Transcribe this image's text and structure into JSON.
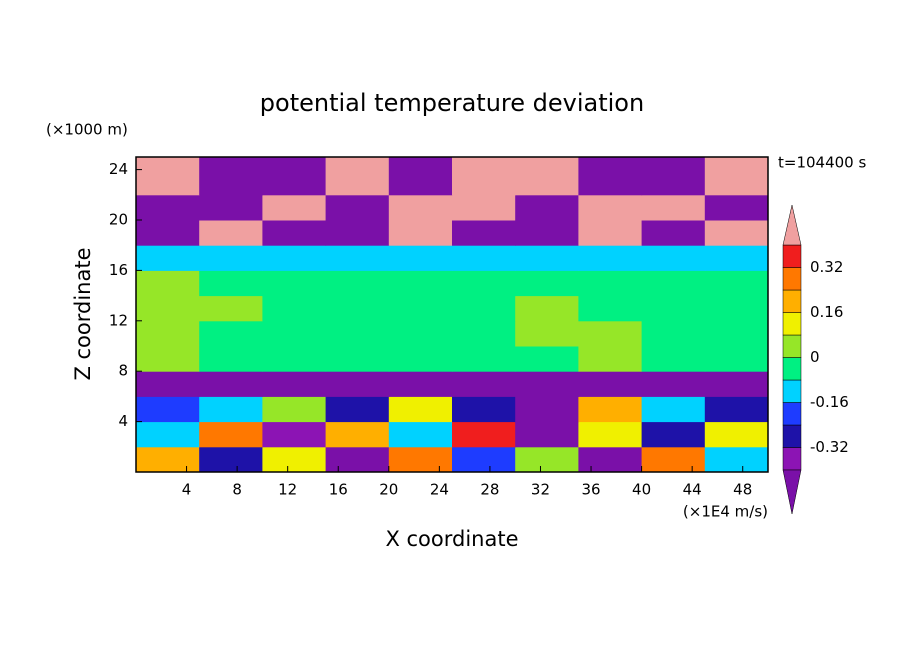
{
  "chart_data": {
    "type": "contour",
    "title": "potential temperature deviation",
    "xlabel": "X coordinate",
    "ylabel": "Z coordinate",
    "x_unit": "(×1E4 m/s)",
    "y_unit": "(×1000 m)",
    "time_label": "t=104400 s",
    "xlim": [
      0,
      50
    ],
    "ylim": [
      0,
      25
    ],
    "xticks": [
      4,
      8,
      12,
      16,
      20,
      24,
      28,
      32,
      36,
      40,
      44,
      48
    ],
    "yticks": [
      4,
      8,
      12,
      16,
      20,
      24
    ],
    "x": [
      2.5,
      7.5,
      12.5,
      17.5,
      22.5,
      27.5,
      32.5,
      37.5,
      42.5,
      47.5
    ],
    "z": [
      1,
      3,
      5,
      7,
      9,
      11,
      13,
      15,
      17,
      19,
      21,
      23
    ],
    "values": [
      [
        0.2,
        -0.3,
        0.12,
        -0.45,
        0.3,
        -0.2,
        0.05,
        -0.45,
        0.25,
        -0.1
      ],
      [
        -0.1,
        0.25,
        -0.35,
        0.18,
        -0.15,
        0.35,
        -0.42,
        0.1,
        -0.25,
        0.15
      ],
      [
        -0.2,
        -0.1,
        0.05,
        -0.3,
        0.1,
        -0.25,
        -0.45,
        0.2,
        -0.15,
        -0.3
      ],
      [
        -0.45,
        -0.45,
        -0.42,
        -0.45,
        -0.45,
        -0.44,
        -0.45,
        -0.45,
        -0.42,
        -0.45
      ],
      [
        0.03,
        -0.04,
        -0.03,
        -0.05,
        -0.04,
        -0.03,
        -0.04,
        0.02,
        -0.04,
        -0.03
      ],
      [
        0.04,
        -0.02,
        -0.04,
        -0.03,
        -0.05,
        -0.04,
        0.03,
        0.04,
        -0.03,
        -0.04
      ],
      [
        0.03,
        0.02,
        -0.04,
        -0.03,
        -0.04,
        -0.05,
        0.04,
        -0.03,
        -0.04,
        -0.03
      ],
      [
        0.02,
        -0.03,
        -0.04,
        -0.05,
        -0.04,
        -0.04,
        -0.03,
        -0.04,
        -0.05,
        -0.04
      ],
      [
        -0.12,
        -0.1,
        -0.12,
        -0.11,
        -0.12,
        -0.13,
        -0.1,
        -0.12,
        -0.11,
        -0.12
      ],
      [
        -0.45,
        0.45,
        -0.45,
        -0.45,
        0.45,
        -0.45,
        -0.45,
        0.45,
        -0.45,
        0.45
      ],
      [
        -0.45,
        -0.45,
        0.45,
        -0.45,
        0.45,
        0.45,
        -0.45,
        0.45,
        0.45,
        -0.45
      ],
      [
        0.45,
        -0.45,
        -0.45,
        0.45,
        -0.45,
        0.45,
        0.45,
        -0.45,
        -0.45,
        0.45
      ]
    ],
    "levels": [
      -0.4,
      -0.32,
      -0.24,
      -0.16,
      -0.08,
      0,
      0.08,
      0.16,
      0.24,
      0.32,
      0.4
    ],
    "colors": [
      "#7a10a8",
      "#8c14b4",
      "#1e12a8",
      "#1e3cff",
      "#00d2ff",
      "#00f082",
      "#96e628",
      "#f0f000",
      "#ffaf00",
      "#ff7800",
      "#f01e1e",
      "#f0a0a0"
    ],
    "colorbar_ticks": [
      -0.32,
      -0.16,
      0,
      0.16,
      0.32
    ]
  }
}
